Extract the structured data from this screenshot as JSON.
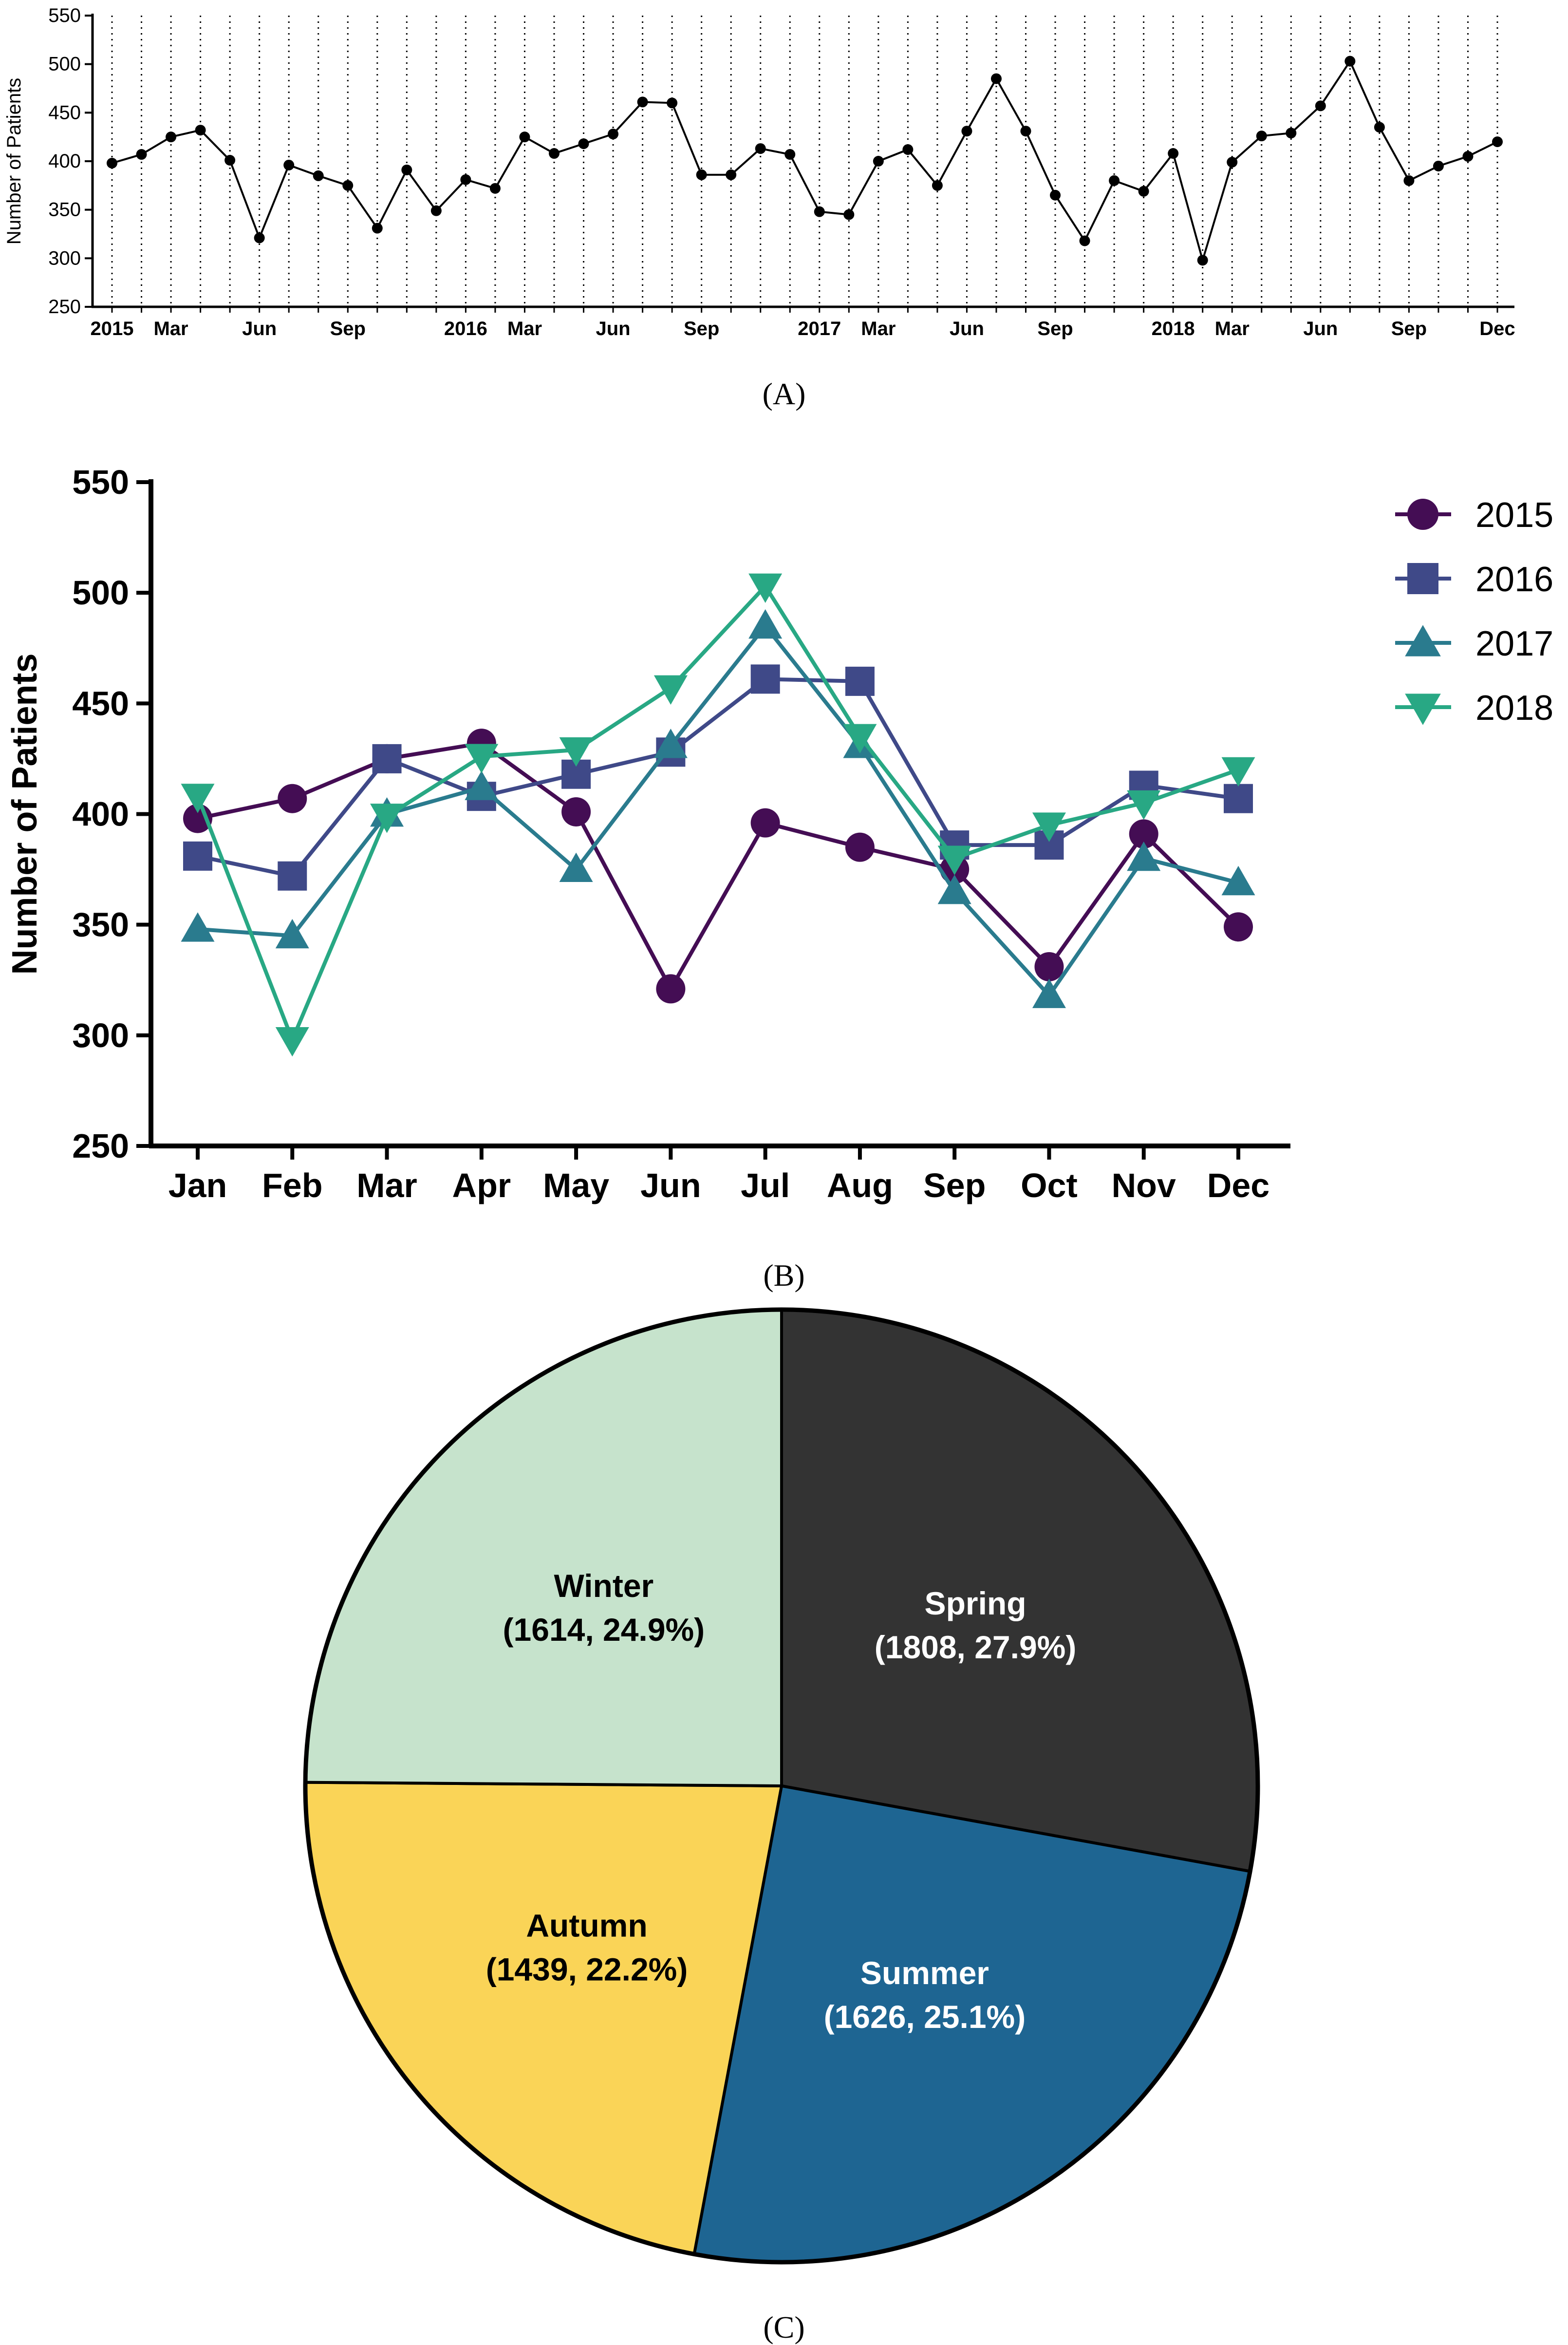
{
  "figure": {
    "panel_labels": [
      "(A)",
      "(B)",
      "(C)"
    ]
  },
  "chart_data": [
    {
      "panel": "A",
      "type": "line",
      "title": "",
      "xlabel": "",
      "ylabel": "Number of Patients",
      "ylim": [
        250,
        550
      ],
      "yticks": [
        250,
        300,
        350,
        400,
        450,
        500,
        550
      ],
      "grid": "vertical-dotted",
      "color": "#000000",
      "tick_labels": [
        {
          "index": 0,
          "label": "2015"
        },
        {
          "index": 2,
          "label": "Mar"
        },
        {
          "index": 5,
          "label": "Jun"
        },
        {
          "index": 8,
          "label": "Sep"
        },
        {
          "index": 12,
          "label": "2016"
        },
        {
          "index": 14,
          "label": "Mar"
        },
        {
          "index": 17,
          "label": "Jun"
        },
        {
          "index": 20,
          "label": "Sep"
        },
        {
          "index": 24,
          "label": "2017"
        },
        {
          "index": 26,
          "label": "Mar"
        },
        {
          "index": 29,
          "label": "Jun"
        },
        {
          "index": 32,
          "label": "Sep"
        },
        {
          "index": 36,
          "label": "2018"
        },
        {
          "index": 38,
          "label": "Mar"
        },
        {
          "index": 41,
          "label": "Jun"
        },
        {
          "index": 44,
          "label": "Sep"
        },
        {
          "index": 47,
          "label": "Dec"
        }
      ],
      "values": [
        398,
        407,
        425,
        432,
        401,
        321,
        396,
        385,
        375,
        331,
        391,
        349,
        381,
        372,
        425,
        408,
        418,
        428,
        461,
        460,
        386,
        386,
        413,
        407,
        348,
        345,
        400,
        412,
        375,
        431,
        485,
        431,
        365,
        318,
        380,
        369,
        408,
        298,
        399,
        426,
        429,
        457,
        503,
        435,
        380,
        395,
        405,
        420
      ]
    },
    {
      "panel": "B",
      "type": "line",
      "title": "",
      "xlabel": "",
      "ylabel": "Number of Patients",
      "ylim": [
        250,
        550
      ],
      "yticks": [
        250,
        300,
        350,
        400,
        450,
        500,
        550
      ],
      "categories": [
        "Jan",
        "Feb",
        "Mar",
        "Apr",
        "May",
        "Jun",
        "Jul",
        "Aug",
        "Sep",
        "Oct",
        "Nov",
        "Dec"
      ],
      "legend_position": "top-right",
      "series": [
        {
          "name": "2015",
          "color": "#440d54",
          "marker": "circle",
          "values": [
            398,
            407,
            425,
            432,
            401,
            321,
            396,
            385,
            375,
            331,
            391,
            349
          ]
        },
        {
          "name": "2016",
          "color": "#3f4988",
          "marker": "square",
          "values": [
            381,
            372,
            425,
            408,
            418,
            428,
            461,
            460,
            386,
            386,
            413,
            407
          ]
        },
        {
          "name": "2017",
          "color": "#2a7b8e",
          "marker": "triangle-up",
          "values": [
            348,
            345,
            400,
            412,
            375,
            431,
            485,
            431,
            365,
            318,
            380,
            369
          ]
        },
        {
          "name": "2018",
          "color": "#28a884",
          "marker": "triangle-down",
          "values": [
            408,
            298,
            399,
            426,
            429,
            457,
            503,
            435,
            380,
            395,
            405,
            420
          ]
        }
      ]
    },
    {
      "panel": "C",
      "type": "pie",
      "title": "",
      "slices": [
        {
          "name": "Spring",
          "value": 1808,
          "percent": 27.9,
          "label": "(1808, 27.9%)",
          "color": "#333333",
          "text_color": "#ffffff"
        },
        {
          "name": "Summer",
          "value": 1626,
          "percent": 25.1,
          "label": "(1626, 25.1%)",
          "color": "#1e6592",
          "text_color": "#ffffff"
        },
        {
          "name": "Autumn",
          "value": 1439,
          "percent": 22.2,
          "label": "(1439, 22.2%)",
          "color": "#fad457",
          "text_color": "#000000"
        },
        {
          "name": "Winter",
          "value": 1614,
          "percent": 24.9,
          "label": "(1614, 24.9%)",
          "color": "#c6e3cc",
          "text_color": "#000000"
        }
      ]
    }
  ]
}
